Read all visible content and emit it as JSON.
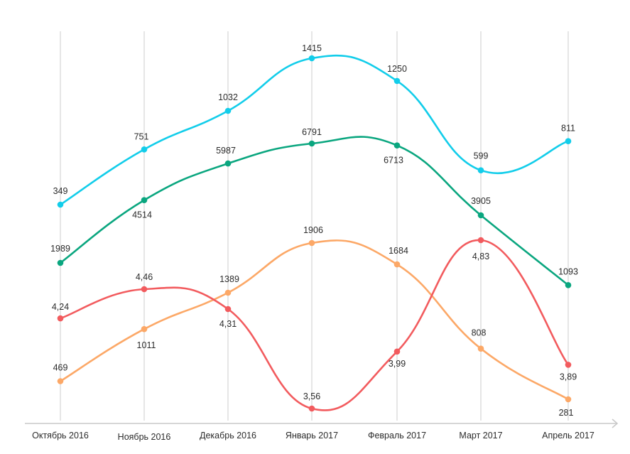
{
  "chart_data": {
    "type": "line",
    "categories": [
      "Октябрь 2016",
      "Ноябрь 2016",
      "Декабрь 2016",
      "Январь 2017",
      "Февраль 2017",
      "Март 2017",
      "Апрель 2017"
    ],
    "grid": "vertical",
    "series": [
      {
        "color": "#12cdea",
        "values": [
          349,
          751,
          1032,
          1415,
          1250,
          599,
          811
        ],
        "labels": [
          "349",
          "751",
          "1032",
          "1415",
          "1250",
          "599",
          "811"
        ]
      },
      {
        "color": "#0aa67f",
        "values": [
          1989,
          4514,
          5987,
          6791,
          6713,
          3905,
          1093
        ],
        "labels": [
          "1989",
          "4514",
          "5987",
          "6791",
          "6713",
          "3905",
          "1093"
        ]
      },
      {
        "color": "#fca867",
        "values": [
          469,
          1011,
          1389,
          1906,
          1684,
          808,
          281
        ],
        "labels": [
          "469",
          "1011",
          "1389",
          "1906",
          "1684",
          "808",
          "281"
        ]
      },
      {
        "color": "#f25b5e",
        "values": [
          4.24,
          4.46,
          4.31,
          3.56,
          3.99,
          4.83,
          3.89
        ],
        "labels": [
          "4,24",
          "4,46",
          "4,31",
          "3,56",
          "3,99",
          "4,83",
          "3,89"
        ]
      }
    ]
  }
}
